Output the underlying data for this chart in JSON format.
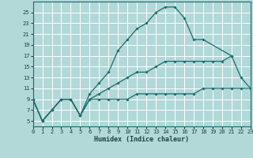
{
  "xlabel": "Humidex (Indice chaleur)",
  "bg_color": "#b2d8d8",
  "grid_color": "#ffffff",
  "line_color": "#1a6b6b",
  "xlim": [
    0,
    23
  ],
  "ylim": [
    4,
    27
  ],
  "xticks": [
    0,
    1,
    2,
    3,
    4,
    5,
    6,
    7,
    8,
    9,
    10,
    11,
    12,
    13,
    14,
    15,
    16,
    17,
    18,
    19,
    20,
    21,
    22,
    23
  ],
  "yticks": [
    5,
    7,
    9,
    11,
    13,
    15,
    17,
    19,
    21,
    23,
    25
  ],
  "line1_x": [
    0,
    1,
    2,
    3,
    4,
    5,
    6,
    7,
    8,
    9,
    10,
    11,
    12,
    13,
    14,
    15,
    16,
    17,
    18,
    19,
    20,
    21,
    22,
    23
  ],
  "line1_y": [
    9,
    5,
    7,
    9,
    9,
    6,
    9,
    9,
    9,
    9,
    9,
    10,
    10,
    10,
    10,
    10,
    10,
    10,
    11,
    11,
    11,
    11,
    11,
    11
  ],
  "line2_x": [
    0,
    1,
    2,
    3,
    4,
    5,
    6,
    7,
    8,
    9,
    10,
    11,
    12,
    13,
    14,
    15,
    16,
    17,
    18,
    19,
    20,
    21,
    22,
    23
  ],
  "line2_y": [
    9,
    5,
    7,
    9,
    9,
    6,
    9,
    10,
    11,
    12,
    13,
    14,
    14,
    15,
    16,
    16,
    16,
    16,
    16,
    16,
    16,
    17,
    13,
    11
  ],
  "line3_x": [
    0,
    1,
    2,
    3,
    4,
    5,
    6,
    7,
    8,
    9,
    10,
    11,
    12,
    13,
    14,
    15,
    16,
    17,
    18,
    21
  ],
  "line3_y": [
    9,
    5,
    7,
    9,
    9,
    6,
    10,
    12,
    14,
    18,
    20,
    22,
    23,
    25,
    26,
    26,
    24,
    20,
    20,
    17
  ]
}
